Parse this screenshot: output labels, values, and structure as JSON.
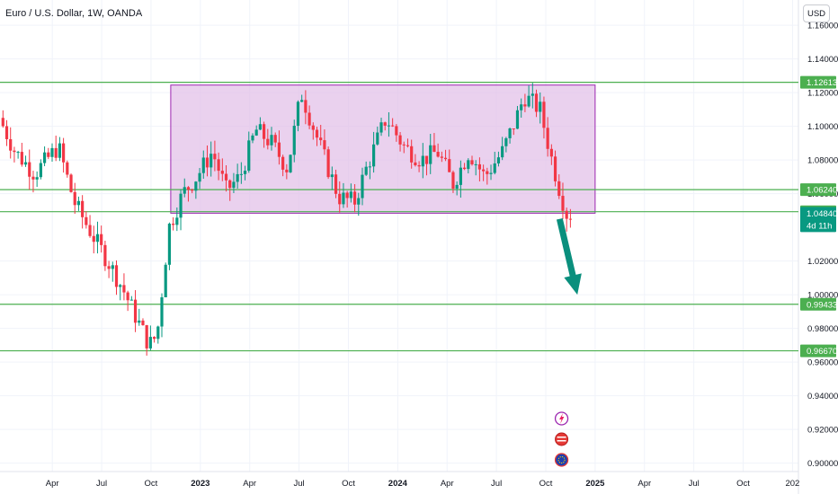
{
  "chart_title": "Euro / U.S. Dollar, 1W, OANDA",
  "currency_label": "USD",
  "countdown": "4d 11h",
  "colors": {
    "up": "#089981",
    "down": "#f23645",
    "level": "#4caf50",
    "zone_fill": "#e1bee7",
    "zone_stroke": "#9c27b0",
    "arrow": "#0a8f7d"
  },
  "chart_data": {
    "type": "candlestick",
    "ylim": [
      0.895,
      1.175
    ],
    "y_ticks": [
      1.16,
      1.14,
      1.12,
      1.1,
      1.08,
      1.06,
      1.02,
      1.0,
      0.98,
      0.96,
      0.94,
      0.92,
      0.9
    ],
    "x_ticks": [
      {
        "label": "Apr",
        "t": 2022.25
      },
      {
        "label": "Jul",
        "t": 2022.5
      },
      {
        "label": "Oct",
        "t": 2022.75
      },
      {
        "label": "2023",
        "t": 2023.0
      },
      {
        "label": "Apr",
        "t": 2023.25
      },
      {
        "label": "Jul",
        "t": 2023.5
      },
      {
        "label": "Oct",
        "t": 2023.75
      },
      {
        "label": "2024",
        "t": 2024.0
      },
      {
        "label": "Apr",
        "t": 2024.25
      },
      {
        "label": "Jul",
        "t": 2024.5
      },
      {
        "label": "Oct",
        "t": 2024.75
      },
      {
        "label": "2025",
        "t": 2025.0
      },
      {
        "label": "Apr",
        "t": 2025.25
      },
      {
        "label": "Jul",
        "t": 2025.5
      },
      {
        "label": "Oct",
        "t": 2025.75
      },
      {
        "label": "202",
        "t": 2026.0
      }
    ],
    "range_box": {
      "from": 2022.85,
      "to": 2025.0,
      "top": 1.1245,
      "bottom": 1.0484
    },
    "levels": [
      {
        "price": 1.12613,
        "label": "1.12613"
      },
      {
        "price": 1.0624,
        "label": "1.06240"
      },
      {
        "price": 1.04929,
        "label": "1.04929"
      },
      {
        "price": 0.99433,
        "label": "0.99433"
      },
      {
        "price": 0.9667,
        "label": "0.96670"
      }
    ],
    "last_price": {
      "price": 1.0484,
      "label": "1.04840"
    },
    "arrow": {
      "from_t": 2024.82,
      "from_p": 1.045,
      "to_t": 2024.91,
      "to_p": 1.0
    },
    "anchors": [
      [
        2022.0,
        1.105
      ],
      [
        2022.08,
        1.085
      ],
      [
        2022.18,
        1.072
      ],
      [
        2022.3,
        1.088
      ],
      [
        2022.38,
        1.055
      ],
      [
        2022.45,
        1.04
      ],
      [
        2022.55,
        1.02
      ],
      [
        2022.62,
        1.005
      ],
      [
        2022.7,
        0.985
      ],
      [
        2022.76,
        0.97
      ],
      [
        2022.8,
        0.976
      ],
      [
        2022.86,
        1.04
      ],
      [
        2022.93,
        1.06
      ],
      [
        2023.0,
        1.07
      ],
      [
        2023.08,
        1.085
      ],
      [
        2023.15,
        1.062
      ],
      [
        2023.22,
        1.07
      ],
      [
        2023.3,
        1.098
      ],
      [
        2023.38,
        1.09
      ],
      [
        2023.46,
        1.075
      ],
      [
        2023.53,
        1.12
      ],
      [
        2023.62,
        1.09
      ],
      [
        2023.72,
        1.058
      ],
      [
        2023.8,
        1.055
      ],
      [
        2023.86,
        1.075
      ],
      [
        2023.96,
        1.105
      ],
      [
        2024.05,
        1.088
      ],
      [
        2024.14,
        1.08
      ],
      [
        2024.22,
        1.085
      ],
      [
        2024.3,
        1.066
      ],
      [
        2024.38,
        1.085
      ],
      [
        2024.46,
        1.07
      ],
      [
        2024.55,
        1.085
      ],
      [
        2024.62,
        1.105
      ],
      [
        2024.66,
        1.118
      ],
      [
        2024.74,
        1.11
      ],
      [
        2024.8,
        1.08
      ],
      [
        2024.84,
        1.062
      ],
      [
        2024.875,
        1.048
      ]
    ]
  }
}
